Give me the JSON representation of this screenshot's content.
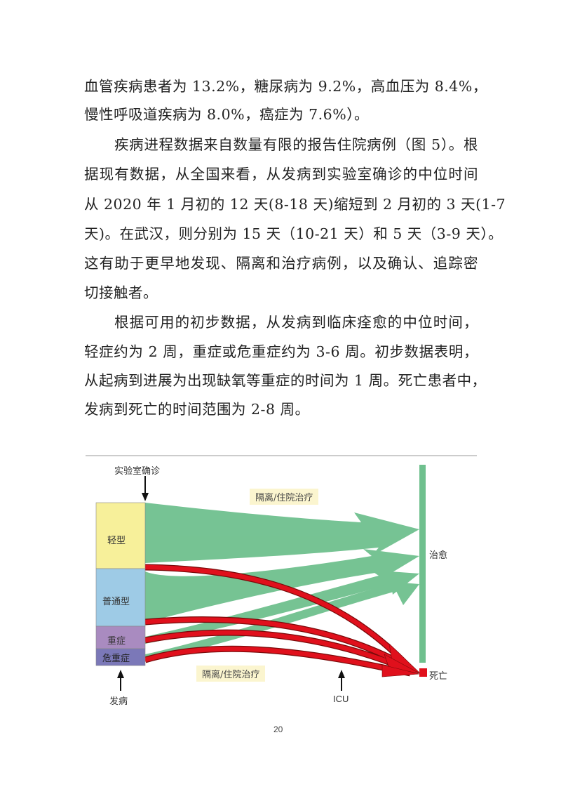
{
  "paragraphs": [
    {
      "lines": [
        "血管疾病患者为 13.2%，糖尿病为 9.2%，高血压为 8.4%，",
        "慢性呼吸道疾病为 8.0%，癌症为 7.6%）。"
      ]
    },
    {
      "lines": [
        "疾病进程数据来自数量有限的报告住院病例（图 5）。根",
        "据现有数据，从全国来看，从发病到实验室确诊的中位时间",
        "从 2020 年 1 月初的 12 天(8-18 天)缩短到 2 月初的 3 天(1-7",
        "天)。在武汉，则分别为 15 天（10-21 天）和 5 天（3-9 天）。",
        "这有助于更早地发现、隔离和治疗病例，以及确认、追踪密",
        "切接触者。"
      ]
    },
    {
      "lines": [
        "根据可用的初步数据，从发病到临床痊愈的中位时间，",
        "轻症约为 2 周，重症或危重症约为 3-6 周。初步数据表明，",
        "从起病到进展为出现缺氧等重症的时间为 1 周。死亡患者中，",
        "发病到死亡的时间范围为 2-8 周。"
      ]
    }
  ],
  "figure": {
    "lab_confirm": "实验室确诊",
    "onset": "发病",
    "icu": "ICU",
    "isolation_top": "隔离/住院治疗",
    "isolation_bottom": "隔离/住院治疗",
    "recovered": "治愈",
    "death": "死亡",
    "categories": [
      {
        "label": "轻型",
        "color": "#f7f09a"
      },
      {
        "label": "普通型",
        "color": "#9ecbe6"
      },
      {
        "label": "重症",
        "color": "#a98bc0"
      },
      {
        "label": "危重症",
        "color": "#7b78b8"
      }
    ],
    "colors": {
      "recovery_flow": "#6fc08e",
      "death_flow": "#e0101c"
    }
  },
  "page_number": "20"
}
